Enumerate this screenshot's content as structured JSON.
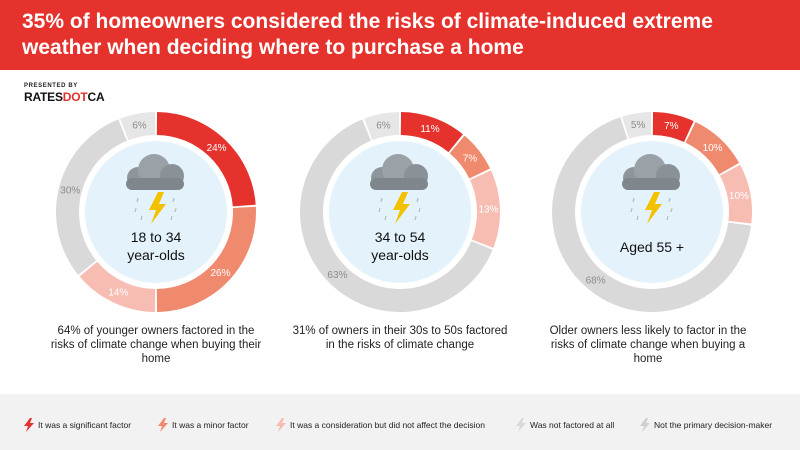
{
  "header": {
    "title": "35% of homeowners considered the risks of climate-induced extreme weather when deciding where to purchase a home"
  },
  "brand": {
    "presented_by": "PRESENTED BY",
    "logo_part1": "RATES",
    "logo_part2": "DOT",
    "logo_part3": "CA"
  },
  "colors": {
    "significant": "#e5322d",
    "minor": "#f08a6e",
    "consideration": "#f7bdb3",
    "not_factored": "#d9d9d9",
    "not_primary": "#e6e6e6",
    "center": "#e4f3fb"
  },
  "chart_data": [
    {
      "type": "pie",
      "title": "18 to 34 year-olds",
      "center_label_lines": [
        "18 to 34",
        "year-olds"
      ],
      "categories": [
        "It was a significant factor",
        "It was a minor factor",
        "It was a consideration but did not affect the decision",
        "Was not factored at all",
        "Not the primary decision-maker"
      ],
      "values": [
        24,
        26,
        14,
        30,
        6
      ],
      "labels": [
        "24%",
        "26%",
        "14%",
        "30%",
        "6%"
      ],
      "description": "64% of younger owners factored in the risks of climate change when buying their home"
    },
    {
      "type": "pie",
      "title": "34 to 54 year-olds",
      "center_label_lines": [
        "34 to 54",
        "year-olds"
      ],
      "categories": [
        "It was a significant factor",
        "It was a minor factor",
        "It was a consideration but did not affect the decision",
        "Was not factored at all",
        "Not the primary decision-maker"
      ],
      "values": [
        11,
        7,
        13,
        63,
        6
      ],
      "labels": [
        "11%",
        "7%",
        "13%",
        "63%",
        "6%"
      ],
      "description": "31% of owners in their 30s to 50s factored in the risks of climate change"
    },
    {
      "type": "pie",
      "title": "Aged 55 +",
      "center_label_lines": [
        "Aged 55 +"
      ],
      "categories": [
        "It was a significant factor",
        "It was a minor factor",
        "It was a consideration but did not affect the decision",
        "Was not factored at all",
        "Not the primary decision-maker"
      ],
      "values": [
        7,
        10,
        10,
        68,
        5
      ],
      "labels": [
        "7%",
        "10%",
        "10%",
        "68%",
        "5%"
      ],
      "description": "Older owners less likely to factor in the risks of climate change when buying a home"
    }
  ],
  "legend": [
    {
      "label": "It was a significant factor",
      "color": "#e5322d"
    },
    {
      "label": "It was a minor factor",
      "color": "#f08a6e"
    },
    {
      "label": "It was a consideration but did not affect the decision",
      "color": "#f7bdb3"
    },
    {
      "label": "Was not factored at all",
      "color": "#d9d9d9"
    },
    {
      "label": "Not the primary decision-maker",
      "color": "#cfcfcf"
    }
  ]
}
